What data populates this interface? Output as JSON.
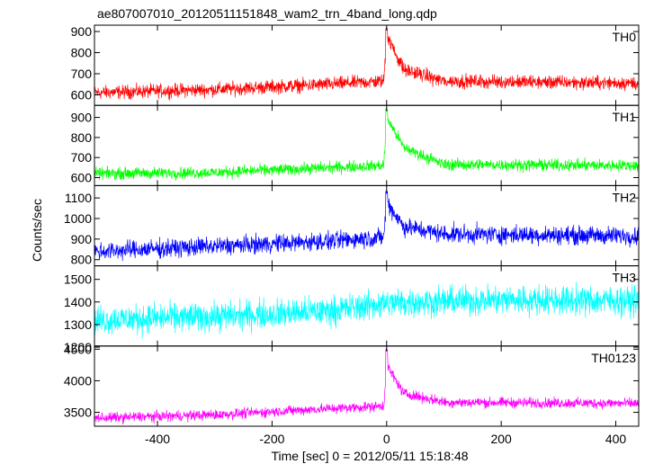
{
  "figure": {
    "title": "ae807007010_20120511151848_wam2_trn_4band_long.qdp",
    "xlabel": "Time [sec] 0 = 2012/05/11 15:18:48",
    "ylabel": "Counts/sec"
  },
  "chart_data": {
    "type": "line",
    "title": "ae807007010_20120511151848_wam2_trn_4band_long.qdp",
    "xlabel": "Time [sec] 0 = 2012/05/11 15:18:48",
    "ylabel": "Counts/sec",
    "xlim": [
      -510,
      440
    ],
    "x_ticks": [
      -400,
      -200,
      0,
      200,
      400
    ],
    "grid": false,
    "legend": "none",
    "panels": [
      {
        "name": "TH0",
        "color": "#ff0000",
        "ylim": [
          550,
          930
        ],
        "y_ticks": [
          600,
          700,
          800,
          900
        ],
        "baseline_points": [
          [
            -510,
            610
          ],
          [
            -300,
            625
          ],
          [
            -100,
            650
          ],
          [
            -5,
            665
          ],
          [
            0,
            880
          ],
          [
            30,
            720
          ],
          [
            100,
            665
          ],
          [
            440,
            655
          ]
        ],
        "noise": 28,
        "peak": [
          0,
          920
        ]
      },
      {
        "name": "TH1",
        "color": "#00ff00",
        "ylim": [
          560,
          960
        ],
        "y_ticks": [
          600,
          700,
          800,
          900
        ],
        "baseline_points": [
          [
            -510,
            620
          ],
          [
            -300,
            625
          ],
          [
            -100,
            650
          ],
          [
            -5,
            660
          ],
          [
            0,
            900
          ],
          [
            30,
            750
          ],
          [
            100,
            665
          ],
          [
            440,
            660
          ]
        ],
        "noise": 25,
        "peak": [
          0,
          950
        ]
      },
      {
        "name": "TH2",
        "color": "#0000ff",
        "ylim": [
          770,
          1160
        ],
        "y_ticks": [
          800,
          900,
          1000,
          1100
        ],
        "baseline_points": [
          [
            -510,
            840
          ],
          [
            -300,
            865
          ],
          [
            -100,
            890
          ],
          [
            -5,
            910
          ],
          [
            0,
            1080
          ],
          [
            30,
            960
          ],
          [
            100,
            925
          ],
          [
            440,
            915
          ]
        ],
        "noise": 38,
        "peak": [
          0,
          1140
        ]
      },
      {
        "name": "TH3",
        "color": "#00ffff",
        "ylim": [
          1205,
          1560
        ],
        "y_ticks": [
          1200,
          1300,
          1400,
          1500
        ],
        "baseline_points": [
          [
            -510,
            1320
          ],
          [
            -300,
            1335
          ],
          [
            -100,
            1360
          ],
          [
            0,
            1395
          ],
          [
            200,
            1410
          ],
          [
            440,
            1405
          ]
        ],
        "noise": 55,
        "peak": null
      },
      {
        "name": "TH0123",
        "color": "#ff00ff",
        "ylim": [
          3280,
          4550
        ],
        "y_ticks": [
          3500,
          4000,
          4500
        ],
        "baseline_points": [
          [
            -510,
            3410
          ],
          [
            -300,
            3460
          ],
          [
            -100,
            3560
          ],
          [
            -5,
            3600
          ],
          [
            0,
            4250
          ],
          [
            30,
            3800
          ],
          [
            100,
            3660
          ],
          [
            440,
            3640
          ]
        ],
        "noise": 70,
        "peak": [
          0,
          4500
        ]
      }
    ]
  }
}
